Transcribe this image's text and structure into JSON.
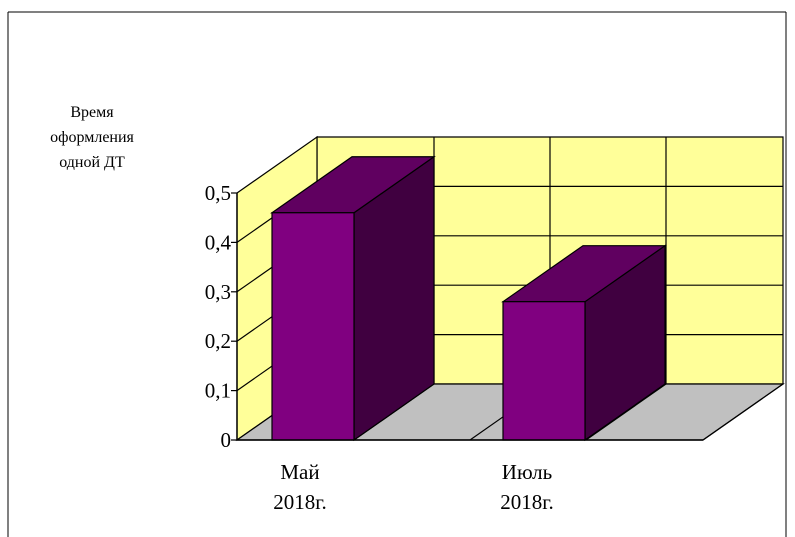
{
  "chart_data": {
    "type": "bar",
    "ylabel_lines": [
      "Время",
      "оформления",
      "одной ДТ"
    ],
    "categories": [
      {
        "lines": [
          "Май",
          "2018г."
        ]
      },
      {
        "lines": [
          "Июль",
          "2018г."
        ]
      }
    ],
    "values": [
      0.46,
      0.28
    ],
    "ylim": [
      0,
      0.5
    ],
    "yticks": [
      "0",
      "0,1",
      "0,2",
      "0,3",
      "0,4",
      "0,5"
    ],
    "grid": true,
    "style": "3d",
    "colors": {
      "wall": "#ffff99",
      "floor": "#c0c0c0",
      "bar_front": "#800080",
      "bar_side": "#400040",
      "bar_top": "#600060",
      "grid": "#000000"
    }
  }
}
